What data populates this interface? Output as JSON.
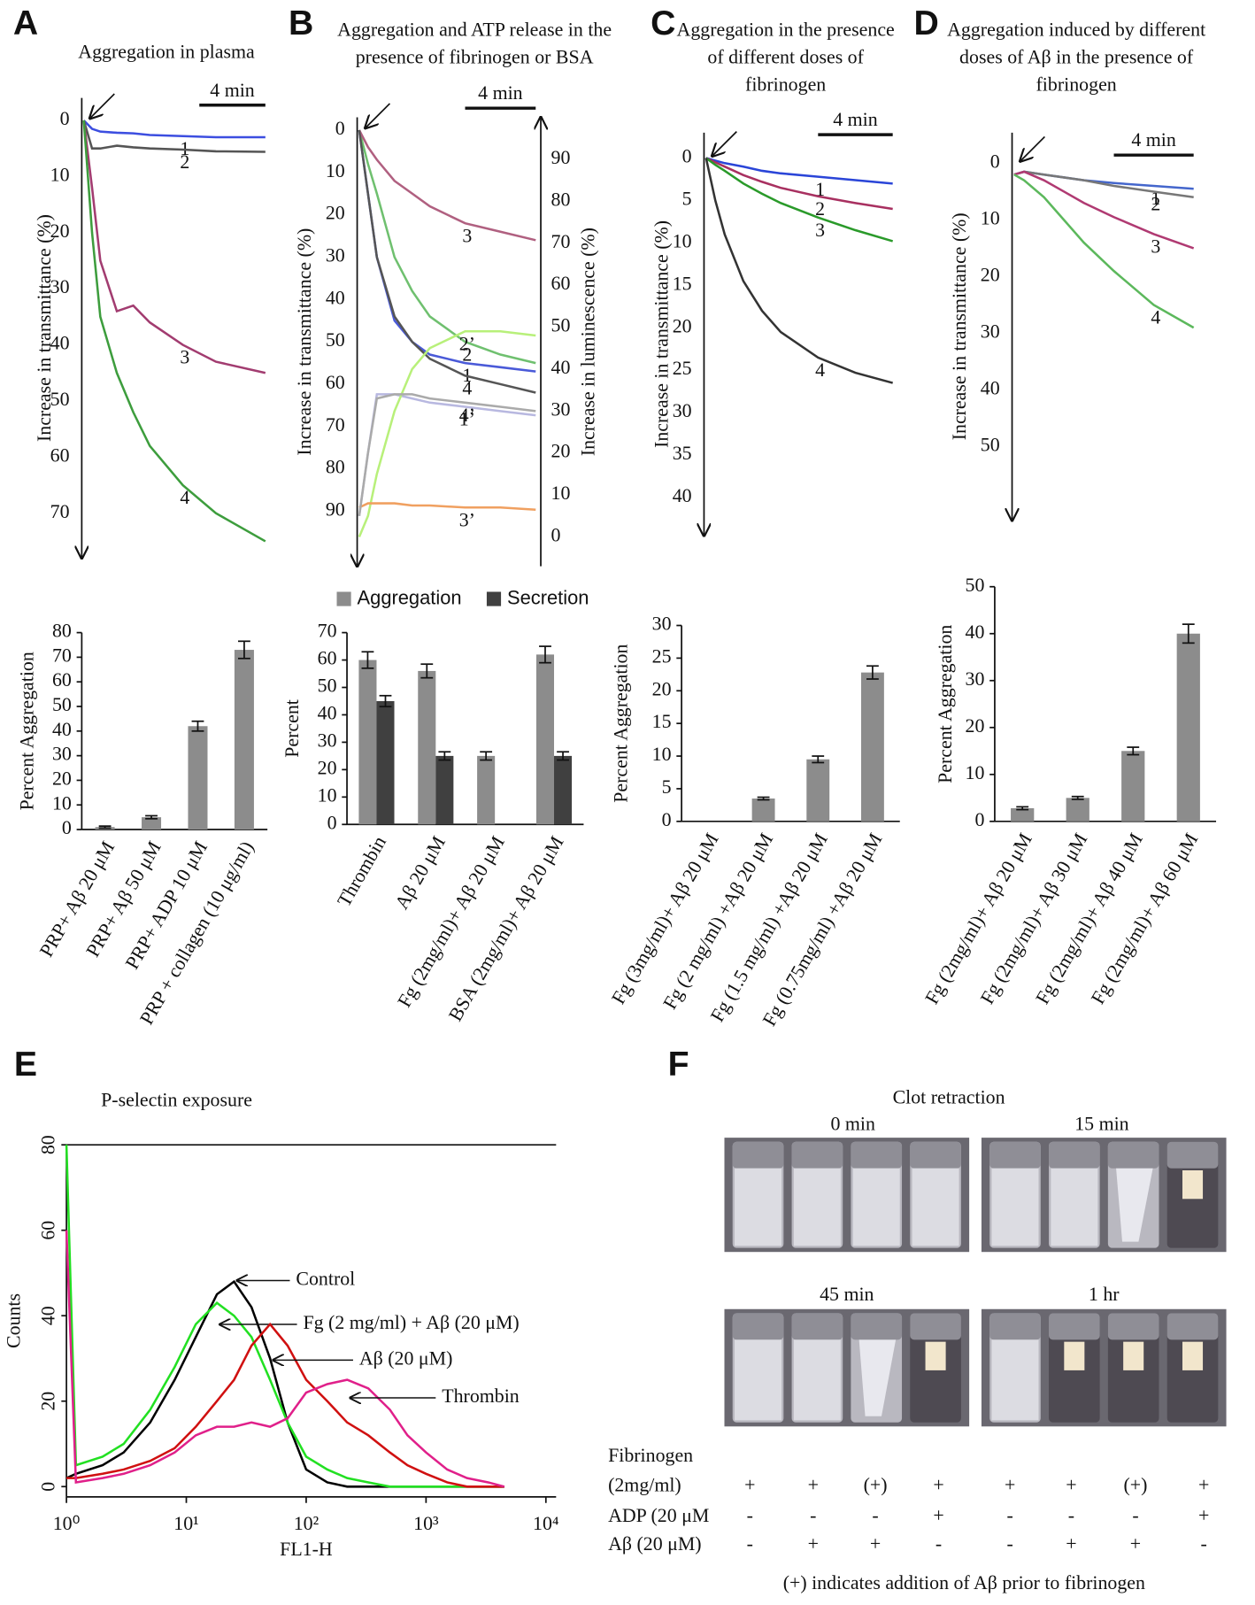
{
  "panel_labels": [
    "A",
    "B",
    "C",
    "D",
    "E",
    "F"
  ],
  "chart_data": [
    {
      "type": "line",
      "title": "Aggregation in plasma",
      "y_label": "Increase in transmittance (%)",
      "y_inverted": true,
      "ylim": [
        -4,
        78
      ],
      "yticks": [
        0,
        10,
        20,
        30,
        40,
        50,
        60,
        70
      ],
      "scalebar": {
        "value": 4,
        "label": "4 min"
      },
      "x": [
        0,
        0.5,
        1,
        2,
        3,
        4,
        6,
        8,
        11
      ],
      "series": [
        {
          "name": "1",
          "color": "#3c4ee0",
          "values": [
            0,
            1.5,
            2,
            2.2,
            2.3,
            2.6,
            2.8,
            3,
            3
          ]
        },
        {
          "name": "2",
          "color": "#555555",
          "values": [
            0,
            5,
            5,
            4.5,
            4.8,
            5,
            5.2,
            5.5,
            5.6
          ]
        },
        {
          "name": "3",
          "color": "#a23c70",
          "values": [
            0,
            12,
            25,
            34,
            33,
            36,
            40,
            43,
            45
          ]
        },
        {
          "name": "4",
          "color": "#3d9d3d",
          "values": [
            0,
            20,
            35,
            45,
            52,
            58,
            65,
            70,
            75
          ]
        }
      ]
    },
    {
      "type": "line",
      "title": "Aggregation and ATP release in the presence of fibrinogen or BSA",
      "y_label": "Increase in transmittance (%)",
      "y2_label": "Increase in luminescence (%)",
      "y_inverted": true,
      "ylim": [
        -3,
        103
      ],
      "yticks": [
        0,
        10,
        20,
        30,
        40,
        50,
        60,
        70,
        80,
        90
      ],
      "y2lim": [
        -7,
        100
      ],
      "y2ticks": [
        0,
        10,
        20,
        30,
        40,
        50,
        60,
        70,
        80,
        90
      ],
      "scalebar": {
        "value": 4,
        "label": "4 min"
      },
      "x": [
        0,
        0.5,
        1,
        2,
        3,
        4,
        6,
        8,
        10
      ],
      "series": [
        {
          "name": "1",
          "color": "#4a5ad8",
          "values": [
            0,
            15,
            30,
            45,
            50,
            53,
            55,
            56,
            57
          ]
        },
        {
          "name": "2",
          "color": "#6fc06f",
          "values": [
            0,
            8,
            15,
            30,
            38,
            44,
            50,
            53,
            55
          ]
        },
        {
          "name": "3",
          "color": "#b06080",
          "values": [
            0,
            4,
            7,
            12,
            15,
            18,
            22,
            24,
            26
          ]
        },
        {
          "name": "4",
          "color": "#555555",
          "values": [
            0,
            15,
            30,
            44,
            50,
            54,
            58,
            60,
            62
          ]
        },
        {
          "name": "1’",
          "color": "#b8b8e0",
          "axis": "y2",
          "values": [
            5,
            20,
            34,
            34,
            33,
            32,
            31,
            30,
            29
          ]
        },
        {
          "name": "2’",
          "color": "#b8f07a",
          "axis": "y2",
          "values": [
            0,
            5,
            15,
            30,
            40,
            45,
            49,
            49,
            48
          ]
        },
        {
          "name": "3’",
          "color": "#f0a060",
          "axis": "y2",
          "values": [
            7,
            8,
            8,
            8,
            7.5,
            7.5,
            7,
            7,
            6.5
          ]
        },
        {
          "name": "4’",
          "color": "#aaaaaa",
          "axis": "y2",
          "values": [
            5,
            20,
            33,
            34,
            34,
            33,
            32,
            31,
            30
          ]
        }
      ]
    },
    {
      "type": "line",
      "title": "Aggregation in the presence of different doses of fibrinogen",
      "y_label": "Increase in transmittance (%)",
      "y_inverted": true,
      "ylim": [
        -3,
        44.5
      ],
      "yticks": [
        0,
        5,
        10,
        15,
        20,
        25,
        30,
        35,
        40
      ],
      "scalebar": {
        "value": 4,
        "label": "4 min"
      },
      "x": [
        0,
        0.5,
        1,
        2,
        3,
        4,
        6,
        8,
        10
      ],
      "series": [
        {
          "name": "1",
          "color": "#2a45d8",
          "values": [
            0,
            0.3,
            0.6,
            1,
            1.5,
            1.8,
            2.2,
            2.6,
            3
          ]
        },
        {
          "name": "2",
          "color": "#a83060",
          "values": [
            0,
            0.5,
            1,
            2,
            2.8,
            3.5,
            4.5,
            5.3,
            6
          ]
        },
        {
          "name": "3",
          "color": "#2a9a2a",
          "values": [
            0,
            0.8,
            1.5,
            3,
            4.2,
            5.3,
            7,
            8.5,
            9.8
          ]
        },
        {
          "name": "4",
          "color": "#333333",
          "values": [
            0,
            5,
            9,
            14.5,
            18,
            20.5,
            23.5,
            25.3,
            26.5
          ]
        }
      ]
    },
    {
      "type": "line",
      "title": "Aggregation induced by different doses of Aβ in the presence of fibrinogen",
      "y_label": "Increase in transmittance (%)",
      "y_inverted": true,
      "ylim": [
        -5.4,
        63
      ],
      "yticks": [
        0,
        10,
        20,
        30,
        40,
        50
      ],
      "scalebar": {
        "value": 4,
        "label": "4 min"
      },
      "x": [
        0,
        0.5,
        1.5,
        2.5,
        3.5,
        5,
        7,
        9
      ],
      "series": [
        {
          "name": "1",
          "color": "#4466cc",
          "values": [
            2,
            1.5,
            2,
            2.5,
            3,
            3.5,
            4,
            4.5
          ]
        },
        {
          "name": "2",
          "color": "#777777",
          "values": [
            2,
            1.5,
            2,
            2.5,
            3,
            4,
            5,
            6
          ]
        },
        {
          "name": "3",
          "color": "#b03a72",
          "values": [
            2,
            1.5,
            3,
            5,
            7,
            9.5,
            12.5,
            15
          ]
        },
        {
          "name": "4",
          "color": "#5cb85c",
          "values": [
            2,
            3,
            6,
            10,
            14,
            19,
            25,
            29
          ]
        }
      ]
    },
    {
      "type": "bar",
      "y_label": "Percent Aggregation",
      "ylim": [
        0,
        80
      ],
      "yticks": [
        0,
        10,
        20,
        30,
        40,
        50,
        60,
        70,
        80
      ],
      "categories": [
        "PRP+ Aβ  20 μM",
        "PRP+ Aβ  50 μM",
        "PRP+ ADP 10 μM",
        "PRP + collagen (10 μg/ml)"
      ],
      "values": [
        1,
        5,
        42,
        73
      ],
      "errors": [
        0.4,
        0.6,
        2,
        3.5
      ],
      "color": "#8c8c8c"
    },
    {
      "type": "bar",
      "y_label": "Percent",
      "ylim": [
        0,
        70
      ],
      "yticks": [
        0,
        10,
        20,
        30,
        40,
        50,
        60,
        70
      ],
      "categories": [
        "Thrombin",
        "Aβ  20 μM",
        "Fg (2mg/ml)+ Aβ  20 μM",
        "BSA (2mg/ml)+ Aβ  20 μM"
      ],
      "legend": "top",
      "series": [
        {
          "name": "Aggregation",
          "color": "#8c8c8c",
          "values": [
            60,
            56,
            25,
            62
          ],
          "errors": [
            3,
            2.5,
            1.5,
            3
          ]
        },
        {
          "name": "Secretion",
          "color": "#404040",
          "values": [
            45,
            25,
            null,
            25
          ],
          "errors": [
            2,
            1.5,
            null,
            1.5
          ]
        }
      ]
    },
    {
      "type": "bar",
      "y_label": "Percent Aggregation",
      "ylim": [
        0,
        30
      ],
      "yticks": [
        0,
        5,
        10,
        15,
        20,
        25,
        30
      ],
      "categories": [
        "Fg (3mg/ml)+ Aβ 20 μM",
        "Fg (2 mg/ml) +Aβ 20 μM",
        "Fg (1.5 mg/ml) +Aβ 20 μM",
        "Fg (0.75mg/ml) +Aβ 20 μM"
      ],
      "values": [
        0,
        3.5,
        9.5,
        22.8
      ],
      "errors": [
        null,
        0.2,
        0.5,
        1
      ],
      "color": "#8c8c8c"
    },
    {
      "type": "bar",
      "y_label": "Percent Aggregation",
      "ylim": [
        0,
        50
      ],
      "yticks": [
        0,
        10,
        20,
        30,
        40,
        50
      ],
      "categories": [
        "Fg (2mg/ml)+ Aβ 20 μM",
        "Fg (2mg/ml)+ Aβ 30 μM",
        "Fg (2mg/ml)+ Aβ 40 μM",
        "Fg (2mg/ml)+ Aβ 60 μM"
      ],
      "values": [
        2.8,
        5,
        15,
        40
      ],
      "errors": [
        0.3,
        0.3,
        0.8,
        2
      ],
      "color": "#8c8c8c"
    },
    {
      "type": "line",
      "title": "P-selectin exposure",
      "x_label": "FL1-H",
      "y_label": "Counts",
      "xscale": "log",
      "xlim": [
        1,
        10000
      ],
      "xticks": [
        {
          "value": 1,
          "label": "10⁰"
        },
        {
          "value": 10,
          "label": "10¹"
        },
        {
          "value": 100,
          "label": "10²"
        },
        {
          "value": 1000,
          "label": "10³"
        },
        {
          "value": 10000,
          "label": "10⁴"
        }
      ],
      "ylim": [
        -2.4,
        80
      ],
      "yticks": [
        0,
        20,
        40,
        60,
        80
      ],
      "x": [
        1,
        1.2,
        2,
        3,
        5,
        8,
        12,
        18,
        25,
        35,
        50,
        70,
        100,
        150,
        220,
        330,
        500,
        700,
        1000,
        1500,
        2200,
        3300,
        4500
      ],
      "series": [
        {
          "name": "Control",
          "color": "#000000",
          "values": [
            2,
            3,
            5,
            8,
            15,
            25,
            35,
            45,
            48,
            42,
            30,
            15,
            4,
            1,
            0,
            0,
            0,
            0,
            0,
            0,
            0,
            0,
            0
          ]
        },
        {
          "name": "Fg (2 mg/ml) + Aβ (20 μM)",
          "color": "#22e022",
          "values": [
            80,
            5,
            7,
            10,
            18,
            28,
            38,
            43,
            40,
            35,
            25,
            15,
            7,
            4,
            2,
            1,
            0,
            0,
            0,
            0,
            0,
            0,
            0
          ]
        },
        {
          "name": "Aβ (20 μM)",
          "color": "#d01010",
          "values": [
            2,
            2,
            3,
            4,
            6,
            9,
            14,
            20,
            25,
            33,
            38,
            33,
            25,
            20,
            15,
            12,
            8,
            5,
            3,
            1,
            0,
            0,
            0
          ]
        },
        {
          "name": "Thrombin",
          "color": "#e0208a",
          "values": [
            60,
            1,
            2,
            3,
            5,
            8,
            12,
            14,
            14,
            15,
            14,
            16,
            22,
            24,
            25,
            23,
            18,
            12,
            8,
            4,
            2,
            1,
            0
          ]
        }
      ]
    }
  ],
  "clot_retraction": {
    "title": "Clot retraction",
    "times": [
      "0 min",
      "15 min",
      "45 min",
      "1 hr"
    ],
    "rows": [
      {
        "label": [
          "Fibrinogen",
          "(2mg/ml)"
        ],
        "marks": [
          "+",
          "+",
          "(+)",
          "+",
          "+",
          "+",
          "(+)",
          "+"
        ]
      },
      {
        "label": [
          "ADP (20 μM"
        ],
        "marks": [
          "-",
          "-",
          "-",
          "+",
          "-",
          "-",
          "-",
          "+"
        ]
      },
      {
        "label": [
          "Aβ (20 μM)"
        ],
        "marks": [
          "-",
          "+",
          "+",
          "-",
          "-",
          "+",
          "+",
          "-"
        ]
      }
    ],
    "footnote": "(+) indicates addition of Aβ prior to fibrinogen"
  }
}
